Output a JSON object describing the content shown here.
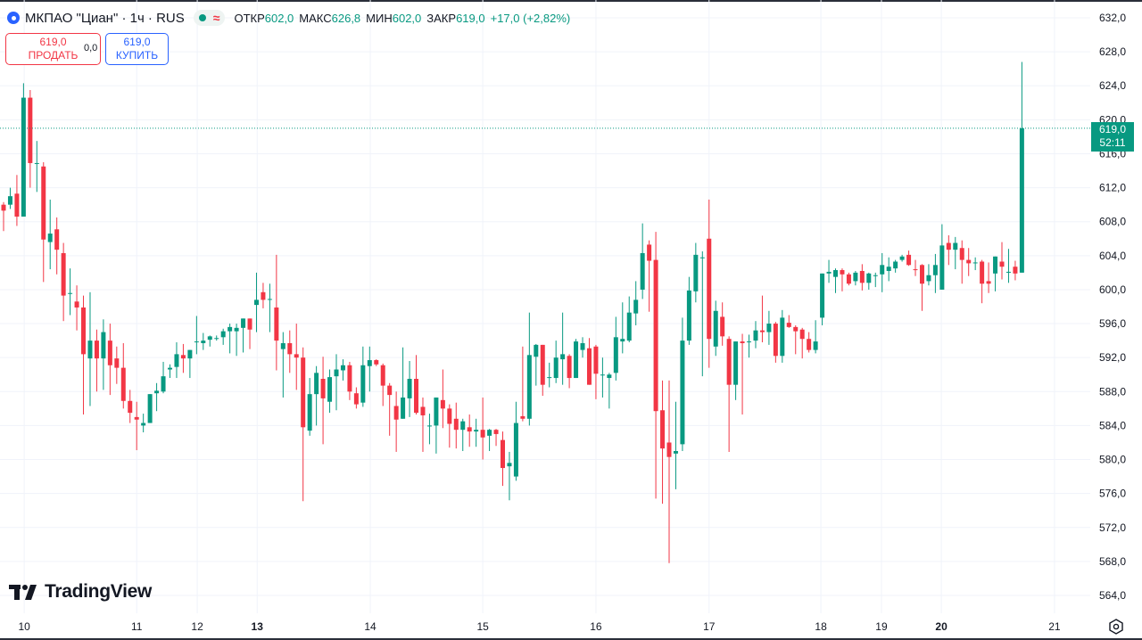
{
  "header": {
    "symbol": "МКПАО \"Циан\" · 1ч · RUS",
    "approx_symbol": "≈",
    "ohlc": [
      {
        "key": "ОТКР",
        "value": "602,0"
      },
      {
        "key": "МАКС",
        "value": "626,8"
      },
      {
        "key": "МИН",
        "value": "602,0"
      },
      {
        "key": "ЗАКР",
        "value": "619,0"
      }
    ],
    "change": "+17,0 (+2,82%)"
  },
  "trade": {
    "sell_price": "619,0",
    "sell_label": "ПРОДАТЬ",
    "spread": "0,0",
    "buy_price": "619,0",
    "buy_label": "КУПИТЬ"
  },
  "price_tag": {
    "price": "619,0",
    "countdown": "52:11"
  },
  "brand": "TradingView",
  "colors": {
    "up": "#089981",
    "down": "#f23645",
    "grid": "#f0f3fa",
    "buy": "#2962ff"
  },
  "chart_data": {
    "type": "candlestick",
    "title": "МКПАО \"Циан\" · 1ч · RUS",
    "ylim": [
      564,
      632
    ],
    "yticks": [
      "564,0",
      "568,0",
      "572,0",
      "576,0",
      "580,0",
      "584,0",
      "588,0",
      "592,0",
      "596,0",
      "600,0",
      "604,0",
      "608,0",
      "612,0",
      "616,0",
      "620,0",
      "624,0",
      "628,0",
      "632,0"
    ],
    "ytick_values": [
      564,
      568,
      572,
      576,
      580,
      584,
      588,
      592,
      596,
      600,
      604,
      608,
      612,
      616,
      620,
      624,
      628,
      632
    ],
    "last_price": 619,
    "xticks": [
      {
        "label": "10",
        "bar": 3.1,
        "bold": false
      },
      {
        "label": "11",
        "bar": 20,
        "bold": false
      },
      {
        "label": "12",
        "bar": 29.1,
        "bold": false
      },
      {
        "label": "13",
        "bar": 38.1,
        "bold": true
      },
      {
        "label": "14",
        "bar": 55.1,
        "bold": false
      },
      {
        "label": "15",
        "bar": 72,
        "bold": false
      },
      {
        "label": "16",
        "bar": 89,
        "bold": false
      },
      {
        "label": "17",
        "bar": 106,
        "bold": false
      },
      {
        "label": "18",
        "bar": 122.8,
        "bold": false
      },
      {
        "label": "19",
        "bar": 131.9,
        "bold": false
      },
      {
        "label": "20",
        "bar": 140.9,
        "bold": true
      },
      {
        "label": "21",
        "bar": 157.9,
        "bold": false
      }
    ],
    "ohlc_format": [
      "open",
      "high",
      "low",
      "close"
    ],
    "ohlc": [
      [
        610,
        610.3,
        606.9,
        609.3
      ],
      [
        610,
        612,
        609.5,
        611
      ],
      [
        611.3,
        613.5,
        607.5,
        608.6
      ],
      [
        608.6,
        624.3,
        608.6,
        622.6
      ],
      [
        622.6,
        623.5,
        612,
        614.9
      ],
      [
        614.9,
        617.5,
        611.5,
        614.9
      ],
      [
        614.5,
        615,
        600.9,
        605.9
      ],
      [
        605.6,
        610.6,
        602.4,
        606.6
      ],
      [
        607.1,
        608.5,
        601.8,
        604.7
      ],
      [
        604.3,
        605.5,
        596.3,
        599.3
      ],
      [
        599.6,
        602.5,
        597,
        599.6
      ],
      [
        598.6,
        600.5,
        595.2,
        597.9
      ],
      [
        597.9,
        599.3,
        585.3,
        592.4
      ],
      [
        591.9,
        599.7,
        586.3,
        594
      ],
      [
        594,
        595.3,
        588,
        591.9
      ],
      [
        591.9,
        596.5,
        588.2,
        595
      ],
      [
        594,
        596,
        587.6,
        591.1
      ],
      [
        591.9,
        593.3,
        588.9,
        590.8
      ],
      [
        590.8,
        593.7,
        586,
        586.9
      ],
      [
        586.9,
        588.2,
        584.3,
        585.5
      ],
      [
        585,
        586.8,
        581.1,
        584.7
      ],
      [
        584,
        585.4,
        583.2,
        584.3
      ],
      [
        584.3,
        587.7,
        584.3,
        587.7
      ],
      [
        587.8,
        589,
        585.7,
        588.1
      ],
      [
        588,
        591.5,
        587.8,
        589.8
      ],
      [
        590.6,
        591.2,
        589.6,
        590.8
      ],
      [
        590.9,
        593.8,
        589.6,
        592.4
      ],
      [
        592.3,
        593.6,
        590.2,
        591.9
      ],
      [
        591.9,
        592.9,
        589.6,
        592.9
      ],
      [
        593.9,
        596.9,
        592.4,
        593.9
      ],
      [
        593.7,
        594.9,
        592.9,
        594
      ],
      [
        594.1,
        594.6,
        593.3,
        594.5
      ],
      [
        594.3,
        594.6,
        594,
        594.3
      ],
      [
        594.4,
        595.4,
        593.5,
        595.1
      ],
      [
        595.1,
        596,
        592.5,
        595.6
      ],
      [
        595.1,
        596,
        592.2,
        595.5
      ],
      [
        595.5,
        596.6,
        592.6,
        596.6
      ],
      [
        596.6,
        596.6,
        593,
        595.3
      ],
      [
        598.2,
        602,
        595,
        598.8
      ],
      [
        599.7,
        600.8,
        597.8,
        598.8
      ],
      [
        598.9,
        600.7,
        595,
        598.9
      ],
      [
        597.9,
        604.1,
        590.5,
        594
      ],
      [
        593,
        595,
        587.3,
        593.7
      ],
      [
        593.7,
        595.2,
        590.2,
        592.4
      ],
      [
        592.4,
        596,
        588.2,
        592
      ],
      [
        592,
        593.2,
        575.1,
        583.8
      ],
      [
        583.4,
        589.6,
        582.8,
        587.7
      ],
      [
        587.7,
        591,
        584,
        590.2
      ],
      [
        589.5,
        592.1,
        581.8,
        587.2
      ],
      [
        586.8,
        590.6,
        585.5,
        589.7
      ],
      [
        589.8,
        592.4,
        585.8,
        590.6
      ],
      [
        590.5,
        591.8,
        589.3,
        591.1
      ],
      [
        591.1,
        591.5,
        587,
        588
      ],
      [
        587.8,
        588.5,
        586,
        586.5
      ],
      [
        586.7,
        593.3,
        586.2,
        591.1
      ],
      [
        591,
        593.3,
        588,
        591.7
      ],
      [
        591.7,
        591.8,
        591,
        591.2
      ],
      [
        591.1,
        591.3,
        586.3,
        588.7
      ],
      [
        588.7,
        589,
        582.8,
        587.6
      ],
      [
        586.3,
        588,
        580.9,
        584.7
      ],
      [
        584.8,
        593.2,
        584.8,
        587.3
      ],
      [
        587.2,
        591.6,
        585,
        589.5
      ],
      [
        589.5,
        592.3,
        585.3,
        585.5
      ],
      [
        586.2,
        587.3,
        580.9,
        585.2
      ],
      [
        583.9,
        585.4,
        581.8,
        584
      ],
      [
        584,
        587.3,
        580.7,
        587.3
      ],
      [
        587,
        590.6,
        583.7,
        586
      ],
      [
        586,
        586.5,
        581.4,
        584.2
      ],
      [
        584.8,
        586.7,
        581.3,
        583.5
      ],
      [
        583.5,
        584.8,
        581,
        584.5
      ],
      [
        583.8,
        585.3,
        581.5,
        583.3
      ],
      [
        583.3,
        584.8,
        581.5,
        583.5
      ],
      [
        583.5,
        587.3,
        580,
        582.6
      ],
      [
        582.8,
        583.6,
        581,
        583.5
      ],
      [
        583.5,
        583.6,
        581.6,
        583
      ],
      [
        582.3,
        583.3,
        576.9,
        579
      ],
      [
        579.2,
        580.9,
        575.2,
        579.6
      ],
      [
        578,
        586.8,
        577.5,
        584.3
      ],
      [
        585.1,
        593.3,
        584.5,
        584.8
      ],
      [
        584.8,
        597.3,
        584,
        592.3
      ],
      [
        592.1,
        593.6,
        588.7,
        593.5
      ],
      [
        593.5,
        593.5,
        587.5,
        588.8
      ],
      [
        589.7,
        591.4,
        588.5,
        589.7
      ],
      [
        589.6,
        594,
        589,
        592
      ],
      [
        591.8,
        597.3,
        588.8,
        592.4
      ],
      [
        592.2,
        592.4,
        588.4,
        589.6
      ],
      [
        589.6,
        594.2,
        589.6,
        593.9
      ],
      [
        592.9,
        594.4,
        592,
        593.7
      ],
      [
        593.1,
        594.3,
        588.8,
        588.8
      ],
      [
        593.3,
        593.5,
        587.1,
        590.1
      ],
      [
        590,
        592,
        587.3,
        590
      ],
      [
        589.6,
        590.2,
        586,
        590
      ],
      [
        590.2,
        596.8,
        589.3,
        594.4
      ],
      [
        593.9,
        598.5,
        592.5,
        594.2
      ],
      [
        594,
        599.2,
        593.8,
        597.3
      ],
      [
        597.2,
        601,
        595.8,
        598.8
      ],
      [
        600,
        607.8,
        598.9,
        604.3
      ],
      [
        605.3,
        605.8,
        597.4,
        603.4
      ],
      [
        603.5,
        606.8,
        575.4,
        585.7
      ],
      [
        585.8,
        589.3,
        574.8,
        581.3
      ],
      [
        582,
        589.3,
        567.8,
        580.3
      ],
      [
        580.7,
        586.8,
        576.5,
        581
      ],
      [
        581.8,
        596.7,
        581,
        594
      ],
      [
        594,
        601.5,
        593.5,
        599.9
      ],
      [
        599.8,
        605.5,
        598.5,
        604.1
      ],
      [
        603.8,
        604.5,
        589.8,
        603.8
      ],
      [
        606,
        610.6,
        590.8,
        594.2
      ],
      [
        593.3,
        598.7,
        592.2,
        597.5
      ],
      [
        596.8,
        598.5,
        593.4,
        594.5
      ],
      [
        594.2,
        594.5,
        580.9,
        588.8
      ],
      [
        588.8,
        593.9,
        587,
        593.9
      ],
      [
        593.9,
        594.8,
        585.3,
        593.7
      ],
      [
        593.9,
        594.7,
        592,
        593.9
      ],
      [
        594,
        596.3,
        593.1,
        595.2
      ],
      [
        595.2,
        599.3,
        593.8,
        595
      ],
      [
        595,
        597.5,
        593.5,
        596
      ],
      [
        596,
        596.2,
        591.4,
        592.2
      ],
      [
        592.2,
        597.6,
        591.4,
        596.7
      ],
      [
        596.1,
        597,
        595.5,
        595.6
      ],
      [
        595.6,
        595.8,
        592.4,
        595.1
      ],
      [
        595.3,
        595.5,
        591.9,
        594.2
      ],
      [
        594.2,
        595,
        592.6,
        592.9
      ],
      [
        592.9,
        596.4,
        592.5,
        593.9
      ],
      [
        596.7,
        601.9,
        595.8,
        601.9
      ],
      [
        601.9,
        603.5,
        600.8,
        602.1
      ],
      [
        601.5,
        602.5,
        599.6,
        602.3
      ],
      [
        602.3,
        602.5,
        599.8,
        601.8
      ],
      [
        601.8,
        602,
        600.5,
        600.7
      ],
      [
        601,
        602.2,
        600.5,
        602
      ],
      [
        602.2,
        603,
        599.9,
        600.8
      ],
      [
        600.8,
        602,
        600,
        601.9
      ],
      [
        601.7,
        602,
        600.3,
        601.7
      ],
      [
        601.8,
        604.3,
        599.7,
        602.9
      ],
      [
        602.2,
        603.8,
        601,
        602.7
      ],
      [
        602.5,
        603.5,
        602,
        603.3
      ],
      [
        603.5,
        604.1,
        603.3,
        603.9
      ],
      [
        604.1,
        604.6,
        602.8,
        602.9
      ],
      [
        602.4,
        603.5,
        601.6,
        602.3
      ],
      [
        602.9,
        603,
        597.5,
        600.7
      ],
      [
        601,
        603,
        600.5,
        601.7
      ],
      [
        601.7,
        604.2,
        599.6,
        602.9
      ],
      [
        600,
        607.7,
        600,
        605.2
      ],
      [
        605.5,
        606.4,
        602.9,
        604.7
      ],
      [
        604.7,
        606.2,
        602.4,
        605.5
      ],
      [
        604.9,
        605.8,
        600.7,
        603.5
      ],
      [
        603.5,
        604.9,
        601.6,
        603.1
      ],
      [
        603.2,
        603.8,
        602.3,
        603.2
      ],
      [
        603.3,
        603.5,
        598.4,
        600.7
      ],
      [
        601,
        603.2,
        599.6,
        600.7
      ],
      [
        601.9,
        603.9,
        599.8,
        603.9
      ],
      [
        603.3,
        605.6,
        601.2,
        602.7
      ],
      [
        602.1,
        604.8,
        600.8,
        602.1
      ],
      [
        602.7,
        603.4,
        601.1,
        601.9
      ],
      [
        602,
        626.8,
        602,
        619
      ]
    ]
  }
}
